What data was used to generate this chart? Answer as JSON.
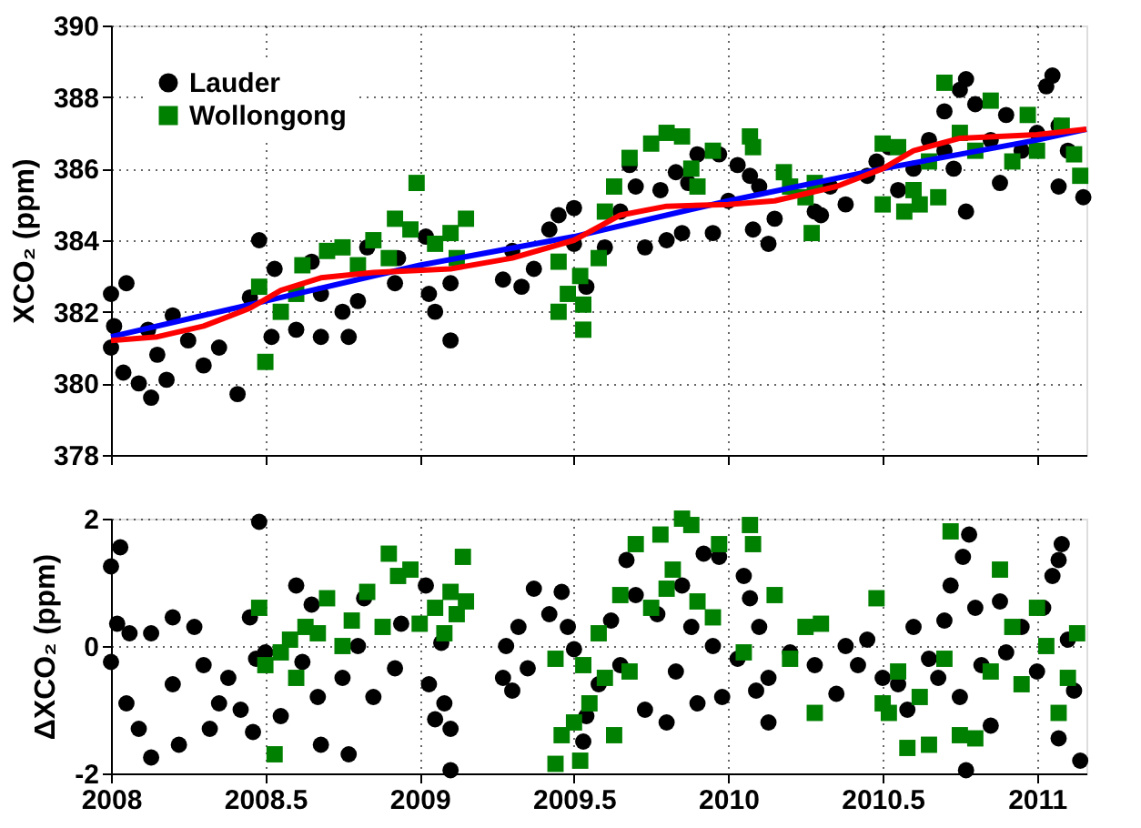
{
  "chart_data": [
    {
      "type": "scatter",
      "ylabel": "XCO₂ (ppm)",
      "xlim": [
        2008,
        2011.16
      ],
      "xticks": [
        2008,
        2008.5,
        2009,
        2009.5,
        2010,
        2010.5,
        2011
      ],
      "ylim": [
        378,
        390
      ],
      "yticks": [
        378,
        380,
        382,
        384,
        386,
        388,
        390
      ],
      "grid": true,
      "legend": "top left",
      "tick_labels": "y",
      "series": [
        {
          "name": "Lauder",
          "color": "#000000",
          "marker": "circle",
          "x": [
            2008.0,
            2008.0,
            2008.01,
            2008.05,
            2008.04,
            2008.09,
            2008.13,
            2008.12,
            2008.15,
            2008.2,
            2008.18,
            2008.25,
            2008.3,
            2008.35,
            2008.41,
            2008.45,
            2008.48,
            2008.53,
            2008.52,
            2008.6,
            2008.65,
            2008.68,
            2008.68,
            2008.75,
            2008.77,
            2008.83,
            2008.8,
            2008.92,
            2008.93,
            2009.02,
            2009.03,
            2009.05,
            2009.1,
            2009.1,
            2009.27,
            2009.3,
            2009.33,
            2009.37,
            2009.42,
            2009.45,
            2009.5,
            2009.5,
            2009.54,
            2009.6,
            2009.65,
            2009.68,
            2009.7,
            2009.73,
            2009.78,
            2009.8,
            2009.83,
            2009.85,
            2009.87,
            2009.9,
            2009.95,
            2009.97,
            2010.0,
            2010.03,
            2010.07,
            2010.08,
            2010.1,
            2010.13,
            2010.15,
            2010.28,
            2010.3,
            2010.33,
            2010.38,
            2010.45,
            2010.48,
            2010.52,
            2010.55,
            2010.6,
            2010.65,
            2010.7,
            2010.7,
            2010.73,
            2010.75,
            2010.77,
            2010.77,
            2010.8,
            2010.85,
            2010.88,
            2010.9,
            2010.95,
            2011.0,
            2011.03,
            2011.05,
            2011.07,
            2011.07,
            2011.1,
            2011.15
          ],
          "values": [
            382.5,
            381,
            381.6,
            382.8,
            380.3,
            380,
            379.6,
            381.5,
            380.8,
            381.9,
            380.1,
            381.2,
            380.5,
            381,
            379.7,
            382.4,
            384,
            383.2,
            381.3,
            381.5,
            383.4,
            382.5,
            381.3,
            382,
            381.3,
            383.8,
            382.3,
            382.8,
            383.5,
            384.1,
            382.5,
            382,
            381.2,
            382.8,
            382.9,
            383.7,
            382.7,
            383.2,
            384.3,
            384.7,
            383.9,
            384.9,
            382.7,
            383.8,
            384.8,
            386.1,
            385.5,
            383.8,
            385.4,
            384,
            385.9,
            384.2,
            385.6,
            386.4,
            384.2,
            386.4,
            385.1,
            386.1,
            385.8,
            384.3,
            385.5,
            383.9,
            384.6,
            384.8,
            384.7,
            385.5,
            385,
            385.8,
            386.2,
            386.6,
            385.4,
            386,
            386.8,
            386.5,
            387.6,
            386,
            388.2,
            388.5,
            384.8,
            387.8,
            386.8,
            385.6,
            387.5,
            386.5,
            387,
            388.3,
            388.6,
            387.2,
            385.5,
            386.5,
            385.2
          ]
        },
        {
          "name": "Wollongong",
          "color": "#008000",
          "marker": "square",
          "x": [
            2008.48,
            2008.5,
            2008.55,
            2008.6,
            2008.62,
            2008.7,
            2008.75,
            2008.8,
            2008.85,
            2008.9,
            2008.92,
            2008.97,
            2008.99,
            2009.05,
            2009.1,
            2009.15,
            2009.12,
            2009.45,
            2009.45,
            2009.48,
            2009.52,
            2009.53,
            2009.53,
            2009.58,
            2009.6,
            2009.63,
            2009.68,
            2009.75,
            2009.8,
            2009.85,
            2009.88,
            2009.9,
            2009.95,
            2010.07,
            2010.08,
            2010.18,
            2010.2,
            2010.25,
            2010.27,
            2010.28,
            2010.5,
            2010.5,
            2010.57,
            2010.55,
            2010.6,
            2010.65,
            2010.62,
            2010.68,
            2010.7,
            2010.75,
            2010.8,
            2010.85,
            2010.92,
            2010.97,
            2011.0,
            2011.08,
            2011.12,
            2011.14
          ],
          "values": [
            382.7,
            380.6,
            382,
            382.5,
            383.3,
            383.7,
            383.8,
            383.3,
            384,
            383.5,
            384.6,
            384.3,
            385.6,
            383.9,
            384.2,
            384.6,
            383.5,
            383.4,
            382,
            382.5,
            383,
            382.2,
            381.5,
            383.5,
            384.8,
            385.5,
            386.3,
            386.7,
            387,
            386.9,
            386,
            385.5,
            386.5,
            386.9,
            386.6,
            385.9,
            385.5,
            385.2,
            384.2,
            385.6,
            386.7,
            385,
            384.8,
            386.6,
            385.4,
            386.2,
            385,
            385.2,
            388.4,
            387,
            386.5,
            387.9,
            386.2,
            387.5,
            386.5,
            387.2,
            386.4,
            385.8
          ]
        },
        {
          "type": "line",
          "color": "#0000ff",
          "marker": "none",
          "x": [
            2008,
            2008.5,
            2009,
            2009.5,
            2010,
            2010.5,
            2011,
            2011.16
          ],
          "values": [
            381.3,
            382.3,
            383.3,
            384.1,
            385.1,
            386,
            386.8,
            387.1
          ]
        },
        {
          "type": "line",
          "color": "#ff0000",
          "marker": "none",
          "x": [
            2008,
            2008.15,
            2008.3,
            2008.45,
            2008.55,
            2008.68,
            2008.85,
            2009.1,
            2009.3,
            2009.5,
            2009.65,
            2009.8,
            2010,
            2010.15,
            2010.35,
            2010.5,
            2010.6,
            2010.75,
            2011,
            2011.16
          ],
          "values": [
            381.2,
            381.3,
            381.6,
            382.1,
            382.6,
            382.95,
            383.1,
            383.2,
            383.5,
            384,
            384.7,
            384.95,
            385,
            385.1,
            385.5,
            386,
            386.5,
            386.85,
            386.95,
            387.1
          ]
        }
      ]
    },
    {
      "type": "scatter",
      "ylabel": "ΔXCO₂ (ppm)",
      "xlim": [
        2008,
        2011.16
      ],
      "xticks": [
        2008,
        2008.5,
        2009,
        2009.5,
        2010,
        2010.5,
        2011
      ],
      "ylim": [
        -2,
        2
      ],
      "yticks": [
        -2,
        0,
        2
      ],
      "grid": true,
      "series": [
        {
          "color": "#000000",
          "marker": "circle",
          "x": [
            2008.0,
            2008.03,
            2008.0,
            2008.02,
            2008.05,
            2008.06,
            2008.09,
            2008.13,
            2008.13,
            2008.2,
            2008.2,
            2008.22,
            2008.27,
            2008.3,
            2008.32,
            2008.35,
            2008.38,
            2008.42,
            2008.45,
            2008.47,
            2008.46,
            2008.48,
            2008.5,
            2008.55,
            2008.6,
            2008.62,
            2008.65,
            2008.67,
            2008.68,
            2008.75,
            2008.77,
            2008.8,
            2008.82,
            2008.85,
            2008.92,
            2008.94,
            2009.02,
            2009.03,
            2009.05,
            2009.07,
            2009.08,
            2009.1,
            2009.1,
            2009.27,
            2009.28,
            2009.3,
            2009.32,
            2009.35,
            2009.37,
            2009.42,
            2009.46,
            2009.48,
            2009.5,
            2009.54,
            2009.53,
            2009.58,
            2009.62,
            2009.65,
            2009.67,
            2009.7,
            2009.73,
            2009.77,
            2009.8,
            2009.83,
            2009.85,
            2009.88,
            2009.9,
            2009.92,
            2009.95,
            2009.97,
            2009.98,
            2010.03,
            2010.05,
            2010.07,
            2010.09,
            2010.1,
            2010.13,
            2010.13,
            2010.2,
            2010.28,
            2010.35,
            2010.38,
            2010.42,
            2010.45,
            2010.5,
            2010.55,
            2010.58,
            2010.6,
            2010.65,
            2010.68,
            2010.7,
            2010.72,
            2010.75,
            2010.76,
            2010.78,
            2010.77,
            2010.8,
            2010.82,
            2010.85,
            2010.88,
            2010.9,
            2010.95,
            2011.0,
            2011.02,
            2011.05,
            2011.07,
            2011.08,
            2011.07,
            2011.1,
            2011.12,
            2011.14
          ],
          "values": [
            1.25,
            1.55,
            -0.25,
            0.35,
            -0.9,
            0.2,
            -1.3,
            -1.75,
            0.2,
            0.45,
            -0.6,
            -1.55,
            0.3,
            -0.3,
            -1.3,
            -0.9,
            -0.5,
            -1.0,
            0.45,
            -0.2,
            -1.35,
            1.95,
            -0.1,
            -1.1,
            0.95,
            -0.25,
            0.65,
            -0.8,
            -1.55,
            -0.5,
            -1.7,
            0.0,
            0.75,
            -0.8,
            -0.35,
            0.35,
            0.95,
            -0.6,
            -1.15,
            0.05,
            -0.9,
            -1.3,
            -1.95,
            -0.5,
            0.0,
            -0.7,
            0.3,
            -0.35,
            0.9,
            0.5,
            0.85,
            0.3,
            -0.05,
            -1.1,
            -1.5,
            -0.6,
            0.4,
            -0.3,
            1.35,
            0.8,
            -1.0,
            0.5,
            -1.2,
            -0.4,
            0.95,
            0.3,
            -0.9,
            1.45,
            0.0,
            1.4,
            -0.8,
            -0.2,
            1.1,
            0.75,
            -0.7,
            0.3,
            -0.5,
            -1.2,
            -0.1,
            -0.3,
            -0.75,
            0.0,
            -0.3,
            0.1,
            -0.5,
            -0.6,
            -1.0,
            0.3,
            -0.2,
            -0.5,
            0.4,
            0.95,
            -0.8,
            1.4,
            1.75,
            -1.95,
            0.6,
            -0.3,
            -1.25,
            0.7,
            -0.1,
            0.3,
            -0.4,
            0.6,
            1.1,
            1.35,
            1.6,
            -1.45,
            0.1,
            -0.7,
            -1.8
          ]
        },
        {
          "color": "#008000",
          "marker": "square",
          "x": [
            2008.48,
            2008.5,
            2008.53,
            2008.55,
            2008.58,
            2008.6,
            2008.63,
            2008.67,
            2008.7,
            2008.75,
            2008.78,
            2008.83,
            2008.88,
            2008.9,
            2008.93,
            2008.97,
            2009.0,
            2009.05,
            2009.08,
            2009.1,
            2009.12,
            2009.14,
            2009.15,
            2009.44,
            2009.44,
            2009.46,
            2009.5,
            2009.52,
            2009.53,
            2009.55,
            2009.58,
            2009.6,
            2009.63,
            2009.65,
            2009.68,
            2009.7,
            2009.75,
            2009.78,
            2009.8,
            2009.82,
            2009.85,
            2009.88,
            2009.9,
            2009.95,
            2009.97,
            2010.05,
            2010.07,
            2010.08,
            2010.15,
            2010.2,
            2010.25,
            2010.28,
            2010.3,
            2010.48,
            2010.5,
            2010.52,
            2010.55,
            2010.58,
            2010.62,
            2010.65,
            2010.7,
            2010.72,
            2010.75,
            2010.8,
            2010.85,
            2010.88,
            2010.92,
            2010.95,
            2011.0,
            2011.03,
            2011.07,
            2011.1,
            2011.13
          ],
          "values": [
            0.6,
            -0.3,
            -1.7,
            -0.1,
            0.1,
            -0.5,
            0.3,
            0.2,
            0.75,
            0.0,
            0.4,
            0.85,
            0.3,
            1.45,
            1.1,
            1.2,
            0.35,
            0.6,
            0.2,
            0.85,
            0.5,
            1.4,
            0.7,
            -0.2,
            -1.85,
            -1.4,
            -1.2,
            -1.8,
            -0.3,
            -0.9,
            0.2,
            -0.5,
            -1.4,
            0.8,
            -0.4,
            1.6,
            0.6,
            1.75,
            0.9,
            1.2,
            2.0,
            1.9,
            0.7,
            0.45,
            1.6,
            -0.1,
            1.9,
            1.6,
            0.8,
            -0.2,
            0.3,
            -1.05,
            0.35,
            0.75,
            -0.9,
            -1.05,
            -0.4,
            -1.6,
            -0.8,
            -1.55,
            -0.2,
            1.8,
            -1.4,
            -1.45,
            -0.4,
            1.2,
            0.3,
            -0.6,
            0.6,
            0.0,
            -1.05,
            -0.5,
            0.2
          ]
        }
      ]
    }
  ]
}
